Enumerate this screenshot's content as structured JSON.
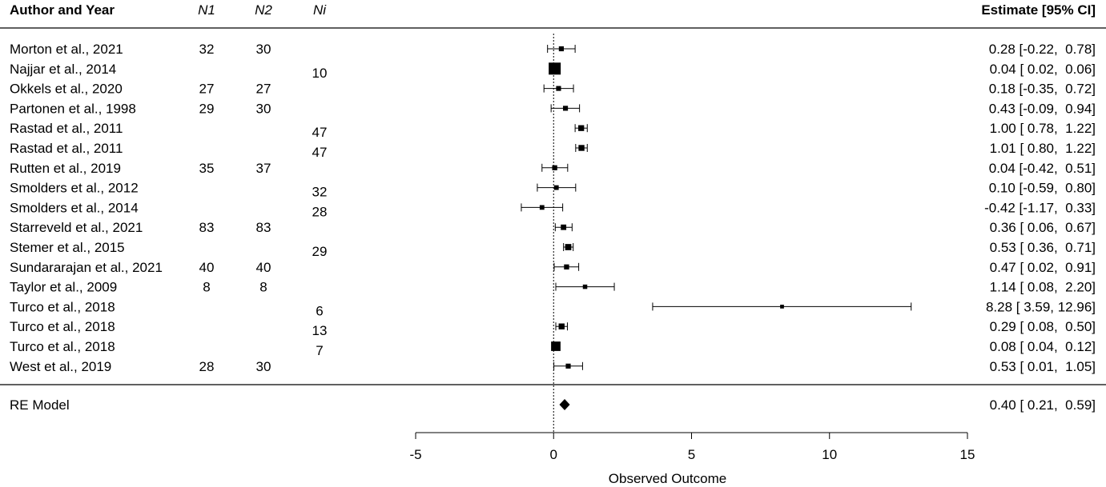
{
  "header": {
    "author_year": "Author and Year",
    "n1": "N1",
    "n2": "N2",
    "ni": "Ni",
    "estimate": "Estimate [95% CI]"
  },
  "chart_data": {
    "type": "forest",
    "xlabel": "Observed Outcome",
    "xlim": [
      -5,
      15
    ],
    "xticks": [
      -5,
      0,
      5,
      10,
      15
    ],
    "reference_line": 0,
    "studies": [
      {
        "label": "Morton et al., 2021",
        "n1": "32",
        "n2": "30",
        "ni": "",
        "est": 0.28,
        "lo": -0.22,
        "hi": 0.78,
        "text": "0.28 [-0.22,  0.78]"
      },
      {
        "label": "Najjar et al., 2014",
        "n1": "",
        "n2": "",
        "ni": "10",
        "est": 0.04,
        "lo": 0.02,
        "hi": 0.06,
        "text": "0.04 [ 0.02,  0.06]"
      },
      {
        "label": "Okkels et al., 2020",
        "n1": "27",
        "n2": "27",
        "ni": "",
        "est": 0.18,
        "lo": -0.35,
        "hi": 0.72,
        "text": "0.18 [-0.35,  0.72]"
      },
      {
        "label": "Partonen et al., 1998",
        "n1": "29",
        "n2": "30",
        "ni": "",
        "est": 0.43,
        "lo": -0.09,
        "hi": 0.94,
        "text": "0.43 [-0.09,  0.94]"
      },
      {
        "label": "Rastad et al., 2011",
        "n1": "",
        "n2": "",
        "ni": "47",
        "est": 1.0,
        "lo": 0.78,
        "hi": 1.22,
        "text": "1.00 [ 0.78,  1.22]"
      },
      {
        "label": "Rastad et al., 2011",
        "n1": "",
        "n2": "",
        "ni": "47",
        "est": 1.01,
        "lo": 0.8,
        "hi": 1.22,
        "text": "1.01 [ 0.80,  1.22]"
      },
      {
        "label": "Rutten et al., 2019",
        "n1": "35",
        "n2": "37",
        "ni": "",
        "est": 0.04,
        "lo": -0.42,
        "hi": 0.51,
        "text": "0.04 [-0.42,  0.51]"
      },
      {
        "label": "Smolders et al., 2012",
        "n1": "",
        "n2": "",
        "ni": "32",
        "est": 0.1,
        "lo": -0.59,
        "hi": 0.8,
        "text": "0.10 [-0.59,  0.80]"
      },
      {
        "label": "Smolders et al., 2014",
        "n1": "",
        "n2": "",
        "ni": "28",
        "est": -0.42,
        "lo": -1.17,
        "hi": 0.33,
        "text": "-0.42 [-1.17,  0.33]"
      },
      {
        "label": "Starreveld et al., 2021",
        "n1": "83",
        "n2": "83",
        "ni": "",
        "est": 0.36,
        "lo": 0.06,
        "hi": 0.67,
        "text": "0.36 [ 0.06,  0.67]"
      },
      {
        "label": "Stemer et al., 2015",
        "n1": "",
        "n2": "",
        "ni": "29",
        "est": 0.53,
        "lo": 0.36,
        "hi": 0.71,
        "text": "0.53 [ 0.36,  0.71]"
      },
      {
        "label": "Sundararajan et al., 2021",
        "n1": "40",
        "n2": "40",
        "ni": "",
        "est": 0.47,
        "lo": 0.02,
        "hi": 0.91,
        "text": "0.47 [ 0.02,  0.91]"
      },
      {
        "label": "Taylor et al., 2009",
        "n1": "8",
        "n2": "8",
        "ni": "",
        "est": 1.14,
        "lo": 0.08,
        "hi": 2.2,
        "text": "1.14 [ 0.08,  2.20]"
      },
      {
        "label": "Turco et al., 2018",
        "n1": "",
        "n2": "",
        "ni": "6",
        "est": 8.28,
        "lo": 3.59,
        "hi": 12.96,
        "text": "8.28 [ 3.59, 12.96]"
      },
      {
        "label": "Turco et al., 2018",
        "n1": "",
        "n2": "",
        "ni": "13",
        "est": 0.29,
        "lo": 0.08,
        "hi": 0.5,
        "text": "0.29 [ 0.08,  0.50]"
      },
      {
        "label": "Turco et al., 2018",
        "n1": "",
        "n2": "",
        "ni": "7",
        "est": 0.08,
        "lo": 0.04,
        "hi": 0.12,
        "text": "0.08 [ 0.04,  0.12]"
      },
      {
        "label": "West et al., 2019",
        "n1": "28",
        "n2": "30",
        "ni": "",
        "est": 0.53,
        "lo": 0.01,
        "hi": 1.05,
        "text": "0.53 [ 0.01,  1.05]"
      }
    ],
    "summary": {
      "label": "RE Model",
      "est": 0.4,
      "lo": 0.21,
      "hi": 0.59,
      "text": "0.40 [ 0.21,  0.59]"
    }
  }
}
